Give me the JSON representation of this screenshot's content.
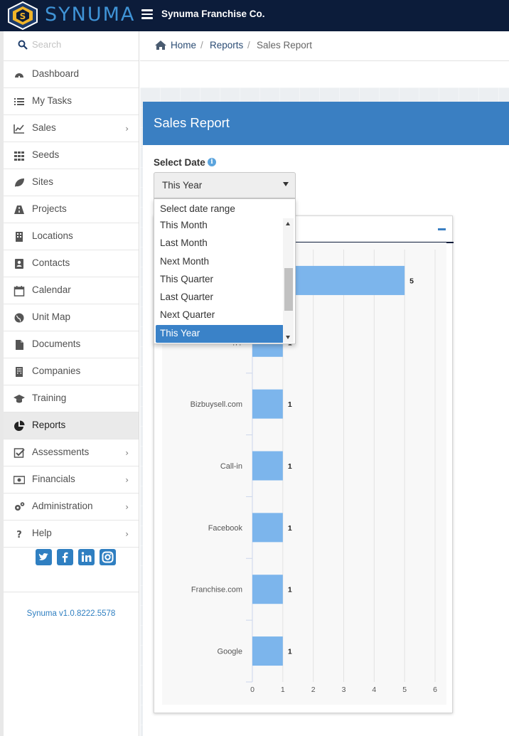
{
  "app": {
    "brand": "SYNUMA",
    "company": "Synuma Franchise Co.",
    "version": "Synuma v1.0.8222.5578"
  },
  "colors": {
    "topbar": "#0c1c3a",
    "brand_blue": "#3f93d6",
    "panel_header": "#3a7fc2",
    "bar_fill": "#7cb5ec",
    "selected_option": "#3a82c8"
  },
  "sidebar": {
    "search_placeholder": "Search",
    "items": [
      {
        "label": "Dashboard",
        "icon": "dashboard-icon",
        "chevron": false
      },
      {
        "label": "My Tasks",
        "icon": "tasks-list-icon",
        "chevron": false
      },
      {
        "label": "Sales",
        "icon": "line-chart-icon",
        "chevron": true
      },
      {
        "label": "Seeds",
        "icon": "grid-icon",
        "chevron": false
      },
      {
        "label": "Sites",
        "icon": "leaf-icon",
        "chevron": false
      },
      {
        "label": "Projects",
        "icon": "road-icon",
        "chevron": false
      },
      {
        "label": "Locations",
        "icon": "building-icon",
        "chevron": false
      },
      {
        "label": "Contacts",
        "icon": "address-book-icon",
        "chevron": false
      },
      {
        "label": "Calendar",
        "icon": "calendar-icon",
        "chevron": false
      },
      {
        "label": "Unit Map",
        "icon": "globe-icon",
        "chevron": false
      },
      {
        "label": "Documents",
        "icon": "file-icon",
        "chevron": false
      },
      {
        "label": "Companies",
        "icon": "office-building-icon",
        "chevron": false
      },
      {
        "label": "Training",
        "icon": "graduation-cap-icon",
        "chevron": false
      },
      {
        "label": "Reports",
        "icon": "pie-chart-icon",
        "chevron": false,
        "active": true
      },
      {
        "label": "Assessments",
        "icon": "check-square-icon",
        "chevron": true
      },
      {
        "label": "Financials",
        "icon": "money-icon",
        "chevron": true
      },
      {
        "label": "Administration",
        "icon": "gears-icon",
        "chevron": true
      },
      {
        "label": "Help",
        "icon": "question-icon",
        "chevron": true
      }
    ],
    "social": [
      "twitter-icon",
      "facebook-icon",
      "linkedin-icon",
      "instagram-icon"
    ]
  },
  "breadcrumb": {
    "home": "Home",
    "reports": "Reports",
    "current": "Sales Report",
    "separator": "/"
  },
  "panel": {
    "title": "Sales Report",
    "select_label": "Select Date",
    "selected_value": "This Year"
  },
  "dropdown": {
    "placeholder": "Select date range",
    "options": [
      "This Month",
      "Last Month",
      "Next Month",
      "This Quarter",
      "Last Quarter",
      "Next Quarter",
      "This Year"
    ],
    "selected": "This Year"
  },
  "chart_data": {
    "type": "bar",
    "orientation": "horizontal",
    "categories": [
      "",
      "?/?",
      "Bizbuysell.com",
      "Call-in",
      "Facebook",
      "Franchise.com",
      "Google"
    ],
    "values": [
      5,
      1,
      1,
      1,
      1,
      1,
      1
    ],
    "xlim": [
      0,
      6
    ],
    "xticks": [
      0,
      1,
      2,
      3,
      4,
      5,
      6
    ],
    "grid": true,
    "data_labels": true,
    "title": "",
    "xlabel": "",
    "ylabel": ""
  }
}
